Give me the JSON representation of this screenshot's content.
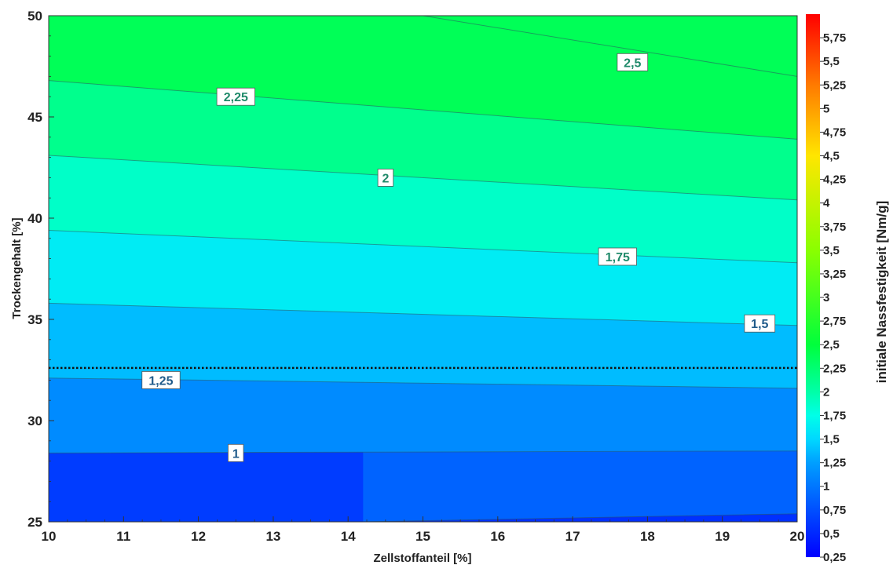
{
  "chart_data": {
    "type": "contour",
    "title": "",
    "xlabel": "Zellstoffanteil [%]",
    "ylabel": "Trockengehalt [%]",
    "colorbar_label": "initiale Nassfestigkeit [Nm/g]",
    "xlim": [
      10,
      20
    ],
    "ylim": [
      25,
      50
    ],
    "x_ticks": [
      "10",
      "11",
      "12",
      "13",
      "14",
      "15",
      "16",
      "17",
      "18",
      "19",
      "20"
    ],
    "y_ticks": [
      "25",
      "30",
      "35",
      "40",
      "45",
      "50"
    ],
    "colorbar_range": [
      0.25,
      6
    ],
    "colorbar_ticks": [
      "0,25",
      "0,5",
      "0,75",
      "1",
      "1,25",
      "1,5",
      "1,75",
      "2",
      "2,25",
      "2,5",
      "2,75",
      "3",
      "3,25",
      "3,5",
      "3,75",
      "4",
      "4,25",
      "4,5",
      "4,75",
      "5",
      "5,25",
      "5,5",
      "5,75"
    ],
    "contour_lines": [
      {
        "level": 0.75,
        "points": [
          [
            14.2,
            25.0
          ],
          [
            20,
            25.4
          ]
        ]
      },
      {
        "level": 1.0,
        "points": [
          [
            10,
            28.4
          ],
          [
            20,
            28.5
          ]
        ]
      },
      {
        "level": 1.25,
        "points": [
          [
            10,
            32.1
          ],
          [
            20,
            31.6
          ]
        ]
      },
      {
        "level": 1.5,
        "points": [
          [
            10,
            35.8
          ],
          [
            20,
            34.7
          ]
        ]
      },
      {
        "level": 1.75,
        "points": [
          [
            10,
            39.4
          ],
          [
            20,
            37.8
          ]
        ]
      },
      {
        "level": 2.0,
        "points": [
          [
            10,
            43.1
          ],
          [
            20,
            40.9
          ]
        ]
      },
      {
        "level": 2.25,
        "points": [
          [
            10,
            46.8
          ],
          [
            20,
            43.9
          ]
        ]
      },
      {
        "level": 2.5,
        "points": [
          [
            15.0,
            50.0
          ],
          [
            20,
            47.0
          ]
        ]
      }
    ],
    "contour_labels": [
      {
        "text": "1",
        "x": 12.5,
        "y": 28.4,
        "level": 1.0
      },
      {
        "text": "1,25",
        "x": 11.5,
        "y": 32.0,
        "level": 1.25
      },
      {
        "text": "1,5",
        "x": 19.5,
        "y": 34.8,
        "level": 1.5
      },
      {
        "text": "1,75",
        "x": 17.6,
        "y": 38.1,
        "level": 1.75
      },
      {
        "text": "2",
        "x": 14.5,
        "y": 42.0,
        "level": 2.0
      },
      {
        "text": "2,25",
        "x": 12.5,
        "y": 46.0,
        "level": 2.25
      },
      {
        "text": "2,5",
        "x": 17.8,
        "y": 47.7,
        "level": 2.5
      }
    ],
    "reference_line": {
      "y": 32.6,
      "style": "dotted",
      "color": "#111111"
    },
    "colorscale": [
      {
        "v": 0.25,
        "color": "#0000ff"
      },
      {
        "v": 1.0,
        "color": "#0077ff"
      },
      {
        "v": 1.25,
        "color": "#009fff"
      },
      {
        "v": 1.5,
        "color": "#00d8ff"
      },
      {
        "v": 1.75,
        "color": "#00ffe8"
      },
      {
        "v": 2.0,
        "color": "#00ffa8"
      },
      {
        "v": 2.5,
        "color": "#00ff3c"
      },
      {
        "v": 3.5,
        "color": "#8aff00"
      },
      {
        "v": 4.5,
        "color": "#ffe600"
      },
      {
        "v": 5.25,
        "color": "#ff7a00"
      },
      {
        "v": 6.0,
        "color": "#ff0000"
      }
    ]
  }
}
